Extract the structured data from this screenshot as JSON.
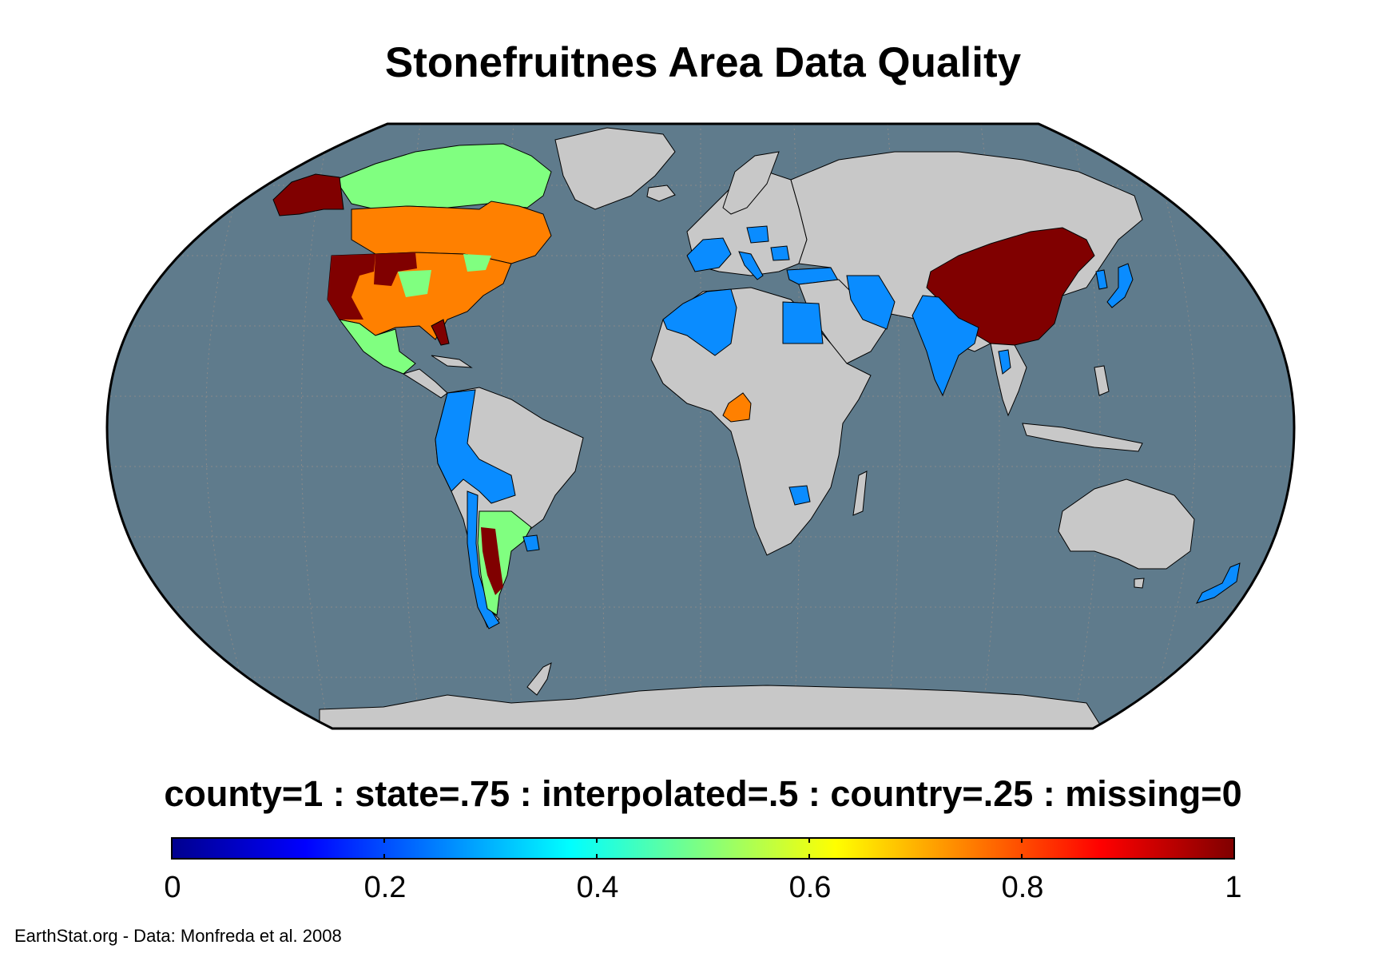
{
  "title": "Stonefruitnes Area Data Quality",
  "legend_label": "county=1 : state=.75 : interpolated=.5 : country=.25 : missing=0",
  "colorbar": {
    "ticks": [
      "0",
      "0.2",
      "0.4",
      "0.6",
      "0.8",
      "1"
    ],
    "range": [
      0,
      1
    ],
    "colormap": "jet"
  },
  "credit": "EarthStat.org - Data: Monfreda et al. 2008",
  "colors": {
    "ocean": "#5f7b8c",
    "land_missing": "#c8c8c8",
    "county": "#800000",
    "state": "#ff8000",
    "interpolated": "#80ff80",
    "country": "#0a8cff",
    "border": "#000000",
    "graticule": "#888888"
  },
  "regions": {
    "county": [
      "China",
      "United States (parts)",
      "Alaska",
      "Argentina (parts)"
    ],
    "state": [
      "United States",
      "Canada",
      "Cameroon"
    ],
    "interpolated": [
      "Canada (north)",
      "Mexico",
      "Argentina",
      "Chile (parts)"
    ],
    "country": [
      "Spain",
      "France",
      "Italy",
      "Poland",
      "Romania",
      "Turkey",
      "Iran",
      "Egypt",
      "Algeria",
      "Morocco",
      "Tunisia",
      "India",
      "Japan",
      "South Korea",
      "Thailand",
      "Colombia",
      "Ecuador",
      "Peru",
      "Bolivia",
      "Chile",
      "Uruguay",
      "Zimbabwe",
      "New Zealand"
    ]
  }
}
